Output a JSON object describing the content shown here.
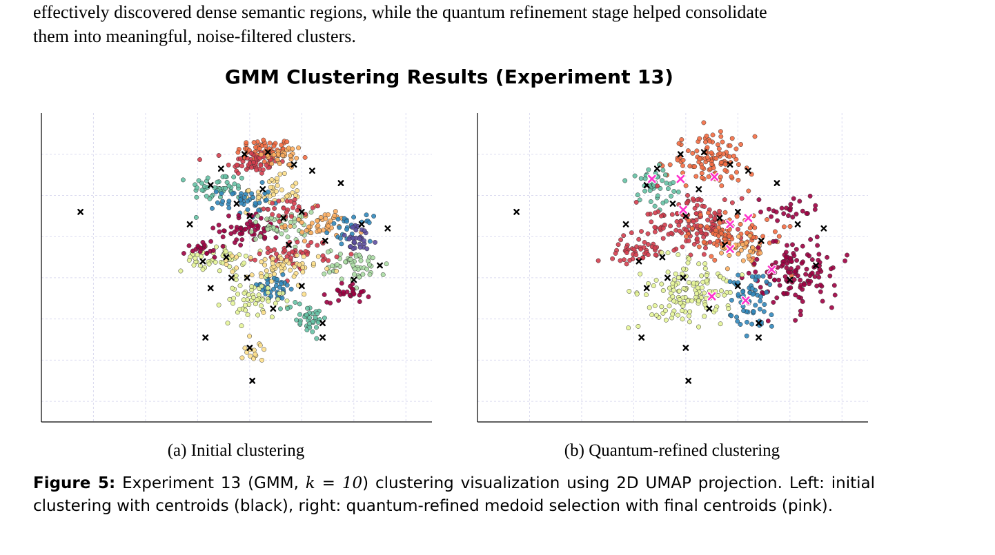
{
  "paragraph": {
    "line1": "effectively discovered dense semantic regions, while the quantum refinement stage helped consolidate",
    "line2": "them into meaningful, noise-filtered clusters."
  },
  "figure": {
    "title": "GMM Clustering Results (Experiment 13)",
    "subcaption_a": "(a) Initial clustering",
    "subcaption_b": "(b) Quantum-refined clustering",
    "caption_label": "Figure 5:",
    "caption_part1": "Experiment 13 (GMM, ",
    "caption_math": "k = 10",
    "caption_part2": ") clustering visualization using 2D UMAP projection. Left: initial clustering with centroids (black), right: quantum-refined medoid selection with final centroids (pink)."
  },
  "chart_data": [
    {
      "type": "scatter",
      "title": "(a) Initial clustering",
      "xlabel": "",
      "ylabel": "",
      "xlim": [
        -1,
        14
      ],
      "ylim": [
        -1,
        14
      ],
      "grid": true,
      "colors": [
        "#9e0142",
        "#d53e4f",
        "#f46d43",
        "#fdae61",
        "#fee08b",
        "#e6f598",
        "#abdda4",
        "#66c2a5",
        "#3288bd",
        "#5e4fa2"
      ],
      "centroid_color": "#000000",
      "clusters": [
        {
          "color_index": 2,
          "center": [
            7.6,
            12.1
          ],
          "spread": [
            0.55,
            0.35
          ],
          "n": 70
        },
        {
          "color_index": 1,
          "center": [
            7.1,
            11.6
          ],
          "spread": [
            0.5,
            0.3
          ],
          "n": 50
        },
        {
          "color_index": 3,
          "center": [
            8.3,
            11.9
          ],
          "spread": [
            0.4,
            0.3
          ],
          "n": 30
        },
        {
          "color_index": 7,
          "center": [
            5.8,
            10.4
          ],
          "spread": [
            0.55,
            0.35
          ],
          "n": 45
        },
        {
          "color_index": 4,
          "center": [
            7.8,
            10.1
          ],
          "spread": [
            0.6,
            0.4
          ],
          "n": 45
        },
        {
          "color_index": 8,
          "center": [
            6.8,
            9.7
          ],
          "spread": [
            0.5,
            0.4
          ],
          "n": 40
        },
        {
          "color_index": 0,
          "center": [
            7.1,
            8.4
          ],
          "spread": [
            0.6,
            0.35
          ],
          "n": 60
        },
        {
          "color_index": 6,
          "center": [
            8.2,
            8.5
          ],
          "spread": [
            0.6,
            0.35
          ],
          "n": 45
        },
        {
          "color_index": 3,
          "center": [
            9.6,
            8.6
          ],
          "spread": [
            0.6,
            0.35
          ],
          "n": 45
        },
        {
          "color_index": 8,
          "center": [
            10.9,
            8.4
          ],
          "spread": [
            0.4,
            0.3
          ],
          "n": 30
        },
        {
          "color_index": 9,
          "center": [
            11.2,
            7.8
          ],
          "spread": [
            0.35,
            0.35
          ],
          "n": 30
        },
        {
          "color_index": 6,
          "center": [
            11.1,
            6.6
          ],
          "spread": [
            0.6,
            0.4
          ],
          "n": 50
        },
        {
          "color_index": 5,
          "center": [
            5.6,
            6.9
          ],
          "spread": [
            0.6,
            0.3
          ],
          "n": 45
        },
        {
          "color_index": 1,
          "center": [
            8.8,
            7.2
          ],
          "spread": [
            0.7,
            0.35
          ],
          "n": 50
        },
        {
          "color_index": 4,
          "center": [
            8.0,
            6.4
          ],
          "spread": [
            0.8,
            0.4
          ],
          "n": 60
        },
        {
          "color_index": 8,
          "center": [
            7.9,
            5.5
          ],
          "spread": [
            0.5,
            0.3
          ],
          "n": 40
        },
        {
          "color_index": 0,
          "center": [
            10.8,
            5.3
          ],
          "spread": [
            0.4,
            0.25
          ],
          "n": 30
        },
        {
          "color_index": 5,
          "center": [
            7.1,
            4.9
          ],
          "spread": [
            0.6,
            0.5
          ],
          "n": 55
        },
        {
          "color_index": 7,
          "center": [
            9.2,
            4.1
          ],
          "spread": [
            0.4,
            0.4
          ],
          "n": 40
        },
        {
          "color_index": 0,
          "center": [
            5.2,
            7.4
          ],
          "spread": [
            0.35,
            0.2
          ],
          "n": 20
        },
        {
          "color_index": 4,
          "center": [
            7.2,
            2.6
          ],
          "spread": [
            0.2,
            0.5
          ],
          "n": 15
        },
        {
          "color_index": 1,
          "center": [
            8.5,
            9.4
          ],
          "spread": [
            0.5,
            0.3
          ],
          "n": 25
        }
      ],
      "centroids": [
        [
          0.5,
          9.2
        ],
        [
          4.7,
          8.6
        ],
        [
          5.9,
          11.3
        ],
        [
          5.5,
          10.5
        ],
        [
          6.8,
          12.0
        ],
        [
          7.7,
          12.1
        ],
        [
          8.7,
          11.5
        ],
        [
          9.4,
          11.2
        ],
        [
          10.5,
          10.6
        ],
        [
          7.5,
          10.3
        ],
        [
          6.5,
          9.6
        ],
        [
          7.0,
          9.0
        ],
        [
          5.2,
          6.8
        ],
        [
          6.1,
          7.0
        ],
        [
          5.5,
          5.5
        ],
        [
          6.9,
          6.0
        ],
        [
          8.5,
          7.6
        ],
        [
          9.9,
          7.8
        ],
        [
          11.3,
          8.6
        ],
        [
          12.0,
          6.6
        ],
        [
          11.0,
          5.9
        ],
        [
          9.0,
          5.6
        ],
        [
          7.9,
          4.5
        ],
        [
          9.8,
          3.8
        ],
        [
          5.3,
          3.1
        ],
        [
          7.0,
          2.6
        ],
        [
          7.1,
          1.0
        ],
        [
          9.8,
          3.1
        ],
        [
          6.3,
          6.0
        ],
        [
          12.3,
          8.4
        ],
        [
          9.0,
          9.2
        ],
        [
          8.3,
          8.9
        ]
      ]
    },
    {
      "type": "scatter",
      "title": "(b) Quantum-refined clustering",
      "xlabel": "",
      "ylabel": "",
      "xlim": [
        -1,
        14
      ],
      "ylim": [
        -1,
        14
      ],
      "grid": true,
      "colors": [
        "#9e0142",
        "#d53e4f",
        "#f46d43",
        "#fdae61",
        "#fee08b",
        "#e6f598",
        "#abdda4",
        "#66c2a5",
        "#3288bd",
        "#5e4fa2"
      ],
      "centroid_color": "#000000",
      "final_centroid_color": "#ff33cc",
      "clusters": [
        {
          "color_index": 2,
          "center": [
            7.9,
            11.7
          ],
          "spread": [
            0.8,
            0.6
          ],
          "n": 110
        },
        {
          "color_index": 7,
          "center": [
            5.8,
            10.5
          ],
          "spread": [
            0.5,
            0.5
          ],
          "n": 45
        },
        {
          "color_index": 1,
          "center": [
            7.2,
            8.6
          ],
          "spread": [
            1.0,
            0.6
          ],
          "n": 130
        },
        {
          "color_index": 1,
          "center": [
            5.0,
            7.3
          ],
          "spread": [
            0.6,
            0.3
          ],
          "n": 45
        },
        {
          "color_index": 2,
          "center": [
            8.9,
            8.1
          ],
          "spread": [
            0.8,
            0.6
          ],
          "n": 90
        },
        {
          "color_index": 3,
          "center": [
            9.2,
            7.3
          ],
          "spread": [
            0.5,
            0.3
          ],
          "n": 30
        },
        {
          "color_index": 0,
          "center": [
            11.3,
            6.2
          ],
          "spread": [
            0.8,
            0.8
          ],
          "n": 130
        },
        {
          "color_index": 5,
          "center": [
            7.1,
            5.3
          ],
          "spread": [
            0.9,
            0.8
          ],
          "n": 130
        },
        {
          "color_index": 8,
          "center": [
            9.5,
            4.8
          ],
          "spread": [
            0.4,
            0.8
          ],
          "n": 60
        },
        {
          "color_index": 0,
          "center": [
            11.0,
            9.2
          ],
          "spread": [
            0.6,
            0.3
          ],
          "n": 25
        }
      ],
      "centroids": [
        [
          0.5,
          9.2
        ],
        [
          4.7,
          8.6
        ],
        [
          5.9,
          11.3
        ],
        [
          5.5,
          10.5
        ],
        [
          6.8,
          12.0
        ],
        [
          7.7,
          12.1
        ],
        [
          8.7,
          11.5
        ],
        [
          9.4,
          11.2
        ],
        [
          10.5,
          10.6
        ],
        [
          7.5,
          10.3
        ],
        [
          6.5,
          9.6
        ],
        [
          7.0,
          9.0
        ],
        [
          5.2,
          6.8
        ],
        [
          6.1,
          7.0
        ],
        [
          5.5,
          5.5
        ],
        [
          6.9,
          6.0
        ],
        [
          8.5,
          7.6
        ],
        [
          9.9,
          7.8
        ],
        [
          11.3,
          8.6
        ],
        [
          12.0,
          6.6
        ],
        [
          11.0,
          5.9
        ],
        [
          9.0,
          5.6
        ],
        [
          7.9,
          4.5
        ],
        [
          9.8,
          3.8
        ],
        [
          5.3,
          3.1
        ],
        [
          7.0,
          2.6
        ],
        [
          7.1,
          1.0
        ],
        [
          9.8,
          3.1
        ],
        [
          6.3,
          6.0
        ],
        [
          12.3,
          8.4
        ],
        [
          9.0,
          9.2
        ],
        [
          8.3,
          8.9
        ]
      ],
      "final_centroids": [
        [
          5.7,
          10.8
        ],
        [
          6.8,
          10.8
        ],
        [
          8.1,
          10.9
        ],
        [
          6.9,
          9.3
        ],
        [
          9.4,
          8.9
        ],
        [
          8.7,
          8.6
        ],
        [
          8.7,
          7.4
        ],
        [
          10.3,
          6.4
        ],
        [
          8.0,
          5.1
        ],
        [
          9.3,
          4.9
        ]
      ]
    }
  ]
}
